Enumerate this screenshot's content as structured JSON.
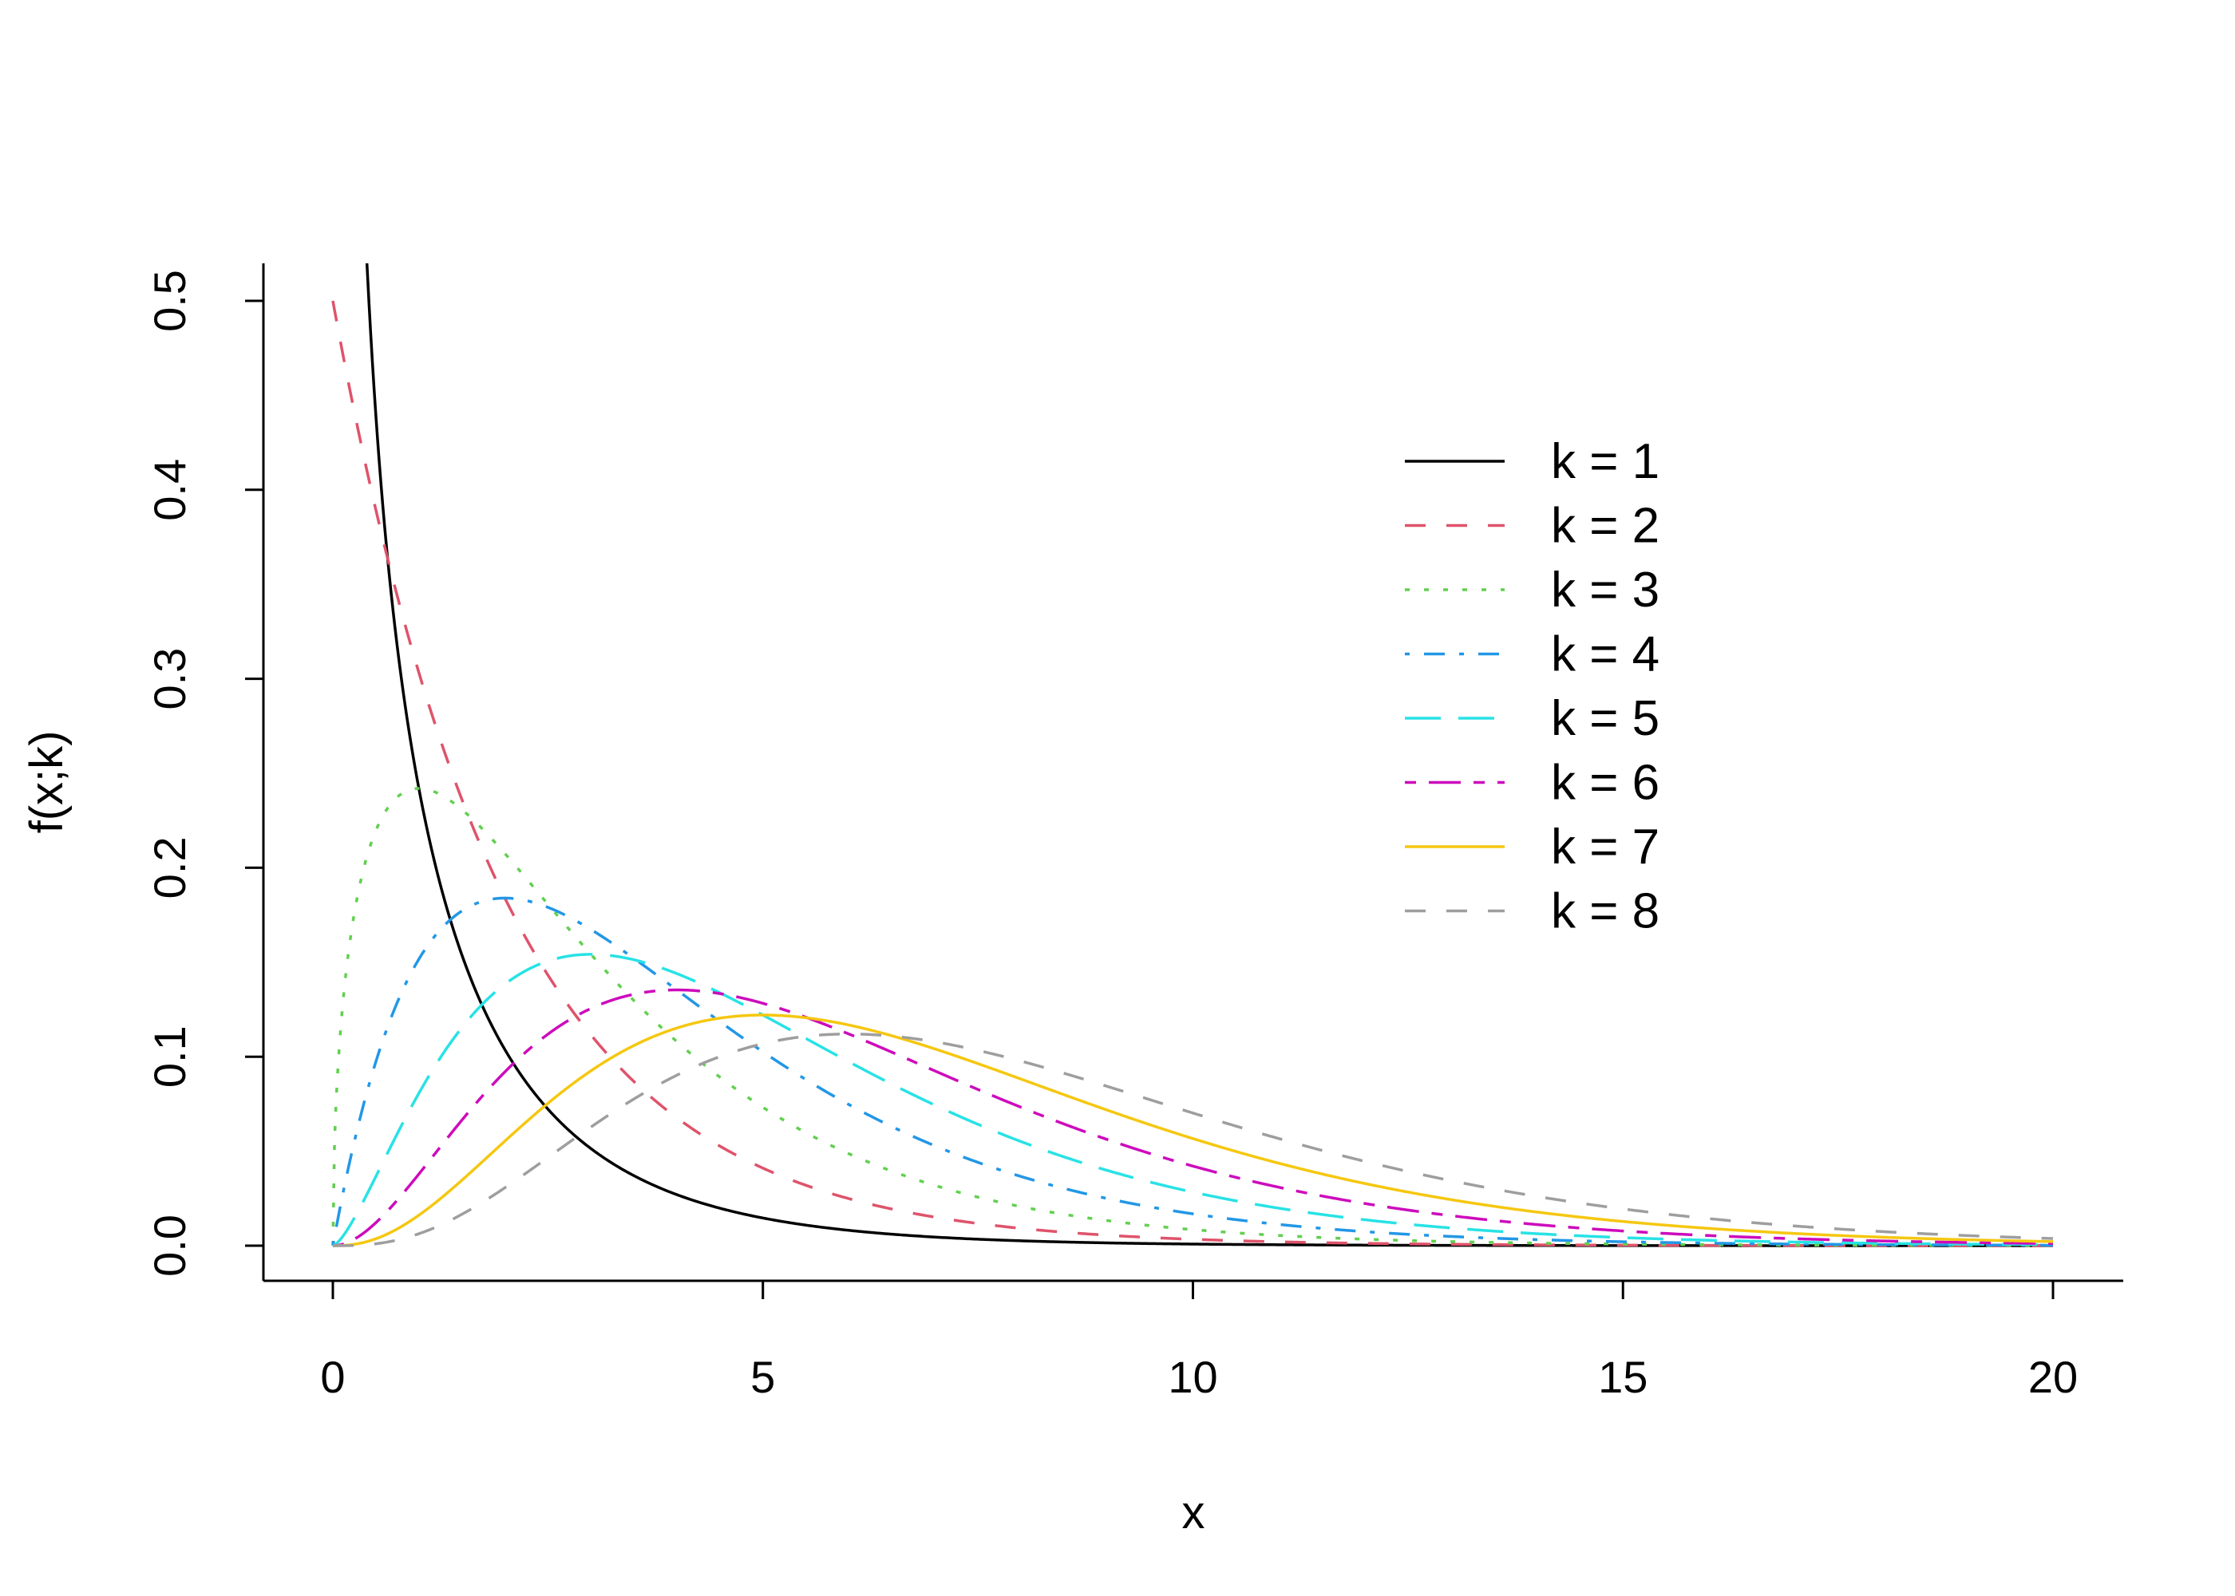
{
  "chart_data": {
    "type": "line",
    "xlabel": "x",
    "ylabel": "f(x;k)",
    "xlim": [
      0,
      20
    ],
    "ylim": [
      0,
      0.5
    ],
    "x_ticks": [
      "0",
      "5",
      "10",
      "15",
      "20"
    ],
    "y_ticks": [
      "0.0",
      "0.1",
      "0.2",
      "0.3",
      "0.4",
      "0.5"
    ],
    "grid": false,
    "legend_position": "top-right",
    "series": [
      {
        "name": "k = 1",
        "k": 1,
        "color": "#000000",
        "dash": "solid"
      },
      {
        "name": "k = 2",
        "k": 2,
        "color": "#DF536B",
        "dash": "dashed"
      },
      {
        "name": "k = 3",
        "k": 3,
        "color": "#61D04F",
        "dash": "dotted"
      },
      {
        "name": "k = 4",
        "k": 4,
        "color": "#2297E6",
        "dash": "dotdash"
      },
      {
        "name": "k = 5",
        "k": 5,
        "color": "#28E2E5",
        "dash": "longdash"
      },
      {
        "name": "k = 6",
        "k": 6,
        "color": "#CD0BBC",
        "dash": "twodash"
      },
      {
        "name": "k = 7",
        "k": 7,
        "color": "#F5C710",
        "dash": "solid"
      },
      {
        "name": "k = 8",
        "k": 8,
        "color": "#9E9E9E",
        "dash": "dashed"
      }
    ]
  }
}
